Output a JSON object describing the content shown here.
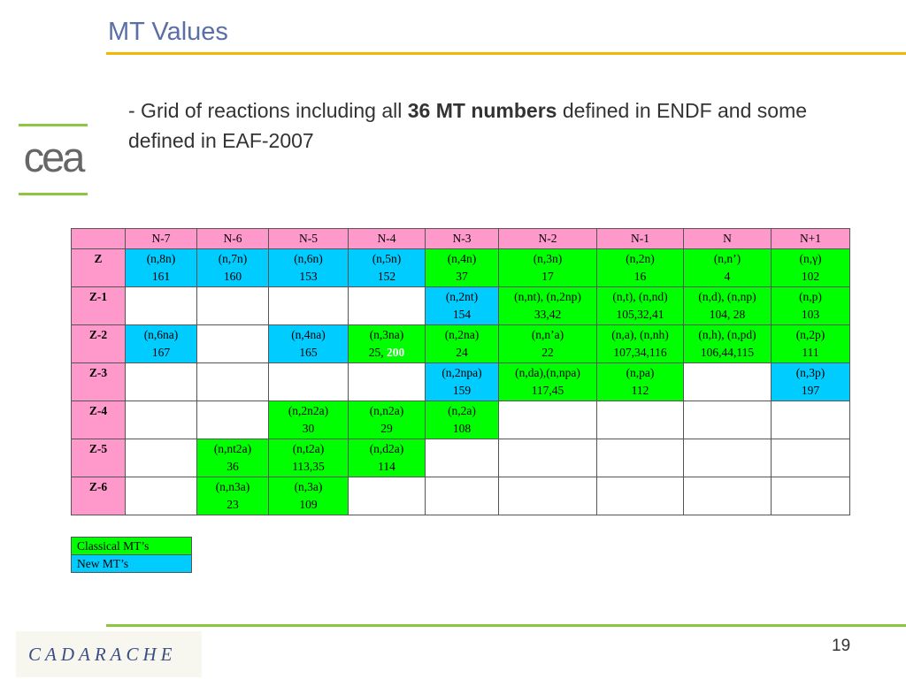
{
  "slide": {
    "title": "MT Values",
    "subtitle_parts": [
      "- Grid of reactions including all ",
      "36 MT numbers",
      " defined in ENDF and some defined in EAF-2007"
    ],
    "logo_text": "cea",
    "footer_logo_text": "CADARACHE",
    "page_number": "19",
    "colors": {
      "title": "#5a6fa6",
      "accent_yellow": "#f2b705",
      "accent_green": "#8dc63f",
      "header_pink": "#ff99cc",
      "classical_green": "#00ff00",
      "new_blue": "#00ccff"
    }
  },
  "table": {
    "headers": [
      "",
      "N-7",
      "N-6",
      "N-5",
      "N-4",
      "N-3",
      "N-2",
      "N-1",
      "N",
      "N+1"
    ],
    "rows": [
      {
        "label": "Z",
        "cells": [
          {
            "r": "(n,8n)",
            "mt": "161",
            "c": "blue"
          },
          {
            "r": "(n,7n)",
            "mt": "160",
            "c": "blue"
          },
          {
            "r": "(n,6n)",
            "mt": "153",
            "c": "blue"
          },
          {
            "r": "(n,5n)",
            "mt": "152",
            "c": "blue"
          },
          {
            "r": "(n,4n)",
            "mt": "37",
            "c": "green"
          },
          {
            "r": "(n,3n)",
            "mt": "17",
            "c": "green"
          },
          {
            "r": "(n,2n)",
            "mt": "16",
            "c": "green"
          },
          {
            "r": "(n,n’)",
            "mt": "4",
            "c": "green"
          },
          {
            "r": "(n,γ)",
            "mt": "102",
            "c": "green"
          }
        ]
      },
      {
        "label": "Z-1",
        "cells": [
          {
            "r": "",
            "mt": "",
            "c": "white"
          },
          {
            "r": "",
            "mt": "",
            "c": "white"
          },
          {
            "r": "",
            "mt": "",
            "c": "white"
          },
          {
            "r": "",
            "mt": "",
            "c": "white"
          },
          {
            "r": "(n,2nt)",
            "mt": "154",
            "c": "blue"
          },
          {
            "r": "(n,nt), (n,2np)",
            "mt": "33,42",
            "c": "green"
          },
          {
            "r": "(n,t), (n,nd)",
            "mt": "105,32,41",
            "c": "green"
          },
          {
            "r": "(n,d), (n,np)",
            "mt": "104, 28",
            "c": "green"
          },
          {
            "r": "(n,p)",
            "mt": "103",
            "c": "green"
          }
        ]
      },
      {
        "label": "Z-2",
        "cells": [
          {
            "r": "(n,6na)",
            "mt": "167",
            "c": "blue"
          },
          {
            "r": "",
            "mt": "",
            "c": "white"
          },
          {
            "r": "(n,4na)",
            "mt": "165",
            "c": "blue"
          },
          {
            "r": "(n,3na)",
            "mt": "25, ",
            "mt_new": "200",
            "c": "green"
          },
          {
            "r": "(n,2na)",
            "mt": "24",
            "c": "green"
          },
          {
            "r": "(n,n’a)",
            "mt": "22",
            "c": "green"
          },
          {
            "r": "(n,a), (n,nh)",
            "mt": "107,34,116",
            "c": "green"
          },
          {
            "r": "(n,h), (n,pd)",
            "mt": "106,44,115",
            "c": "green"
          },
          {
            "r": "(n,2p)",
            "mt": "111",
            "c": "green"
          }
        ]
      },
      {
        "label": "Z-3",
        "cells": [
          {
            "r": "",
            "mt": "",
            "c": "white"
          },
          {
            "r": "",
            "mt": "",
            "c": "white"
          },
          {
            "r": "",
            "mt": "",
            "c": "white"
          },
          {
            "r": "",
            "mt": "",
            "c": "white"
          },
          {
            "r": "(n,2npa)",
            "mt": "159",
            "c": "blue"
          },
          {
            "r": "(n,da),(n,npa)",
            "mt": "117,45",
            "c": "green"
          },
          {
            "r": "(n,pa)",
            "mt": "112",
            "c": "green"
          },
          {
            "r": "",
            "mt": "",
            "c": "white"
          },
          {
            "r": "(n,3p)",
            "mt": "197",
            "c": "blue"
          }
        ]
      },
      {
        "label": "Z-4",
        "cells": [
          {
            "r": "",
            "mt": "",
            "c": "white"
          },
          {
            "r": "",
            "mt": "",
            "c": "white"
          },
          {
            "r": "(n,2n2a)",
            "mt": "30",
            "c": "green"
          },
          {
            "r": "(n,n2a)",
            "mt": "29",
            "c": "green"
          },
          {
            "r": "(n,2a)",
            "mt": "108",
            "c": "green"
          },
          {
            "r": "",
            "mt": "",
            "c": "white"
          },
          {
            "r": "",
            "mt": "",
            "c": "white"
          },
          {
            "r": "",
            "mt": "",
            "c": "white"
          },
          {
            "r": "",
            "mt": "",
            "c": "white"
          }
        ]
      },
      {
        "label": "Z-5",
        "cells": [
          {
            "r": "",
            "mt": "",
            "c": "white"
          },
          {
            "r": "(n,nt2a)",
            "mt": "36",
            "c": "green"
          },
          {
            "r": "(n,t2a)",
            "mt": "113,35",
            "c": "green"
          },
          {
            "r": "(n,d2a)",
            "mt": "114",
            "c": "green"
          },
          {
            "r": "",
            "mt": "",
            "c": "white"
          },
          {
            "r": "",
            "mt": "",
            "c": "white"
          },
          {
            "r": "",
            "mt": "",
            "c": "white"
          },
          {
            "r": "",
            "mt": "",
            "c": "white"
          },
          {
            "r": "",
            "mt": "",
            "c": "white"
          }
        ]
      },
      {
        "label": "Z-6",
        "cells": [
          {
            "r": "",
            "mt": "",
            "c": "white"
          },
          {
            "r": "(n,n3a)",
            "mt": "23",
            "c": "green"
          },
          {
            "r": "(n,3a)",
            "mt": "109",
            "c": "green"
          },
          {
            "r": "",
            "mt": "",
            "c": "white"
          },
          {
            "r": "",
            "mt": "",
            "c": "white"
          },
          {
            "r": "",
            "mt": "",
            "c": "white"
          },
          {
            "r": "",
            "mt": "",
            "c": "white"
          },
          {
            "r": "",
            "mt": "",
            "c": "white"
          },
          {
            "r": "",
            "mt": "",
            "c": "white"
          }
        ]
      }
    ]
  },
  "legend": {
    "classical": "Classical MT’s",
    "new": "New MT’s"
  }
}
